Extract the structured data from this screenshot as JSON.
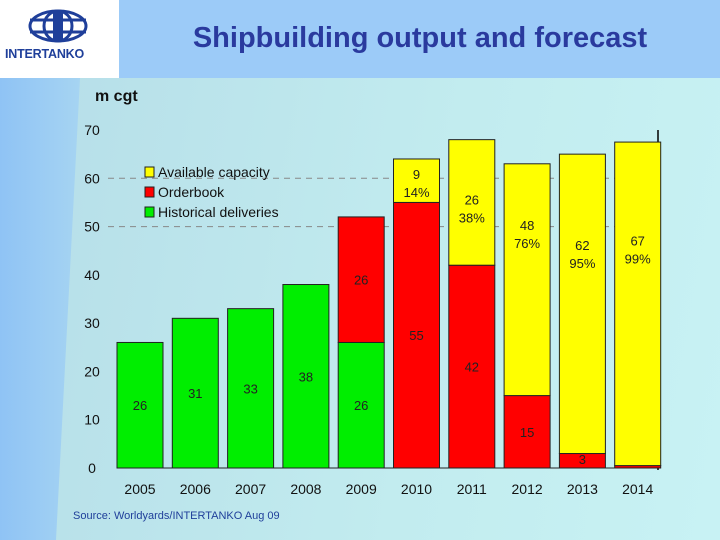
{
  "header": {
    "title": "Shipbuilding output and forecast",
    "logo_text": "INTERTANKO"
  },
  "source": "Source: Worldyards/INTERTANKO Aug 09",
  "colors": {
    "available": "#ffff00",
    "orderbook": "#ff0000",
    "historical": "#00ee00"
  },
  "chart_data": {
    "type": "bar",
    "stacked": true,
    "title": "Shipbuilding output and forecast",
    "ylabel": "m cgt",
    "ylim": [
      0,
      70
    ],
    "yticks": [
      0,
      10,
      20,
      30,
      40,
      50,
      60,
      70
    ],
    "grid": "dashed at 50 and 60",
    "legend_placement": "top-left",
    "categories": [
      "2005",
      "2006",
      "2007",
      "2008",
      "2009",
      "2010",
      "2011",
      "2012",
      "2013",
      "2014"
    ],
    "series": [
      {
        "name": "Historical deliveries",
        "values": [
          26,
          31,
          33,
          38,
          26,
          0,
          0,
          0,
          0,
          0
        ],
        "labels": [
          "26",
          "31",
          "33",
          "38",
          "26",
          "",
          "",
          "",
          "",
          ""
        ]
      },
      {
        "name": "Orderbook",
        "values": [
          0,
          0,
          0,
          0,
          26,
          55,
          42,
          15,
          3,
          0.5
        ],
        "labels": [
          "",
          "",
          "",
          "",
          "26",
          "55",
          "42",
          "15",
          "3",
          "0"
        ]
      },
      {
        "name": "Available capacity",
        "values": [
          0,
          0,
          0,
          0,
          0,
          9,
          26,
          48,
          62,
          67
        ],
        "labels": [
          "",
          "",
          "",
          "",
          "",
          "9",
          "26",
          "48",
          "62",
          "67"
        ],
        "percent_labels": [
          "",
          "",
          "",
          "",
          "",
          "14%",
          "38%",
          "76%",
          "95%",
          "99%"
        ]
      }
    ],
    "legend": [
      "Available capacity",
      "Orderbook",
      "Historical deliveries"
    ]
  }
}
